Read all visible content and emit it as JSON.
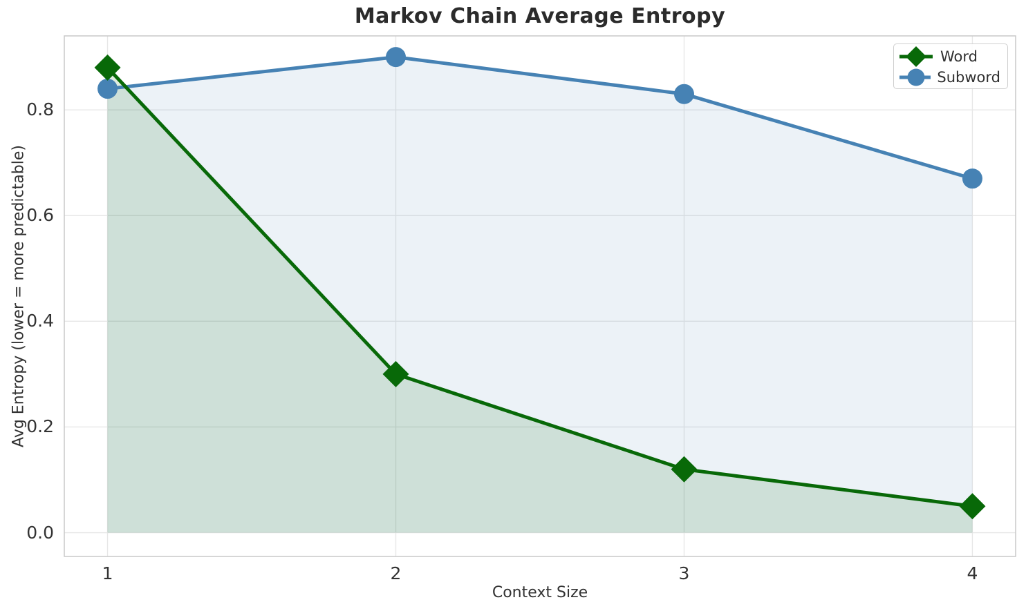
{
  "chart_data": {
    "type": "line",
    "title": "Markov Chain Average Entropy",
    "xlabel": "Context Size",
    "ylabel": "Avg Entropy (lower = more predictable)",
    "x": [
      1,
      2,
      3,
      4
    ],
    "x_tick_labels": [
      "1",
      "2",
      "3",
      "4"
    ],
    "y_tick_values": [
      0.0,
      0.2,
      0.4,
      0.6,
      0.8
    ],
    "y_tick_labels": [
      "0.0",
      "0.2",
      "0.4",
      "0.6",
      "0.8"
    ],
    "xlim": [
      0.85,
      4.15
    ],
    "ylim": [
      -0.045,
      0.94
    ],
    "grid": true,
    "grid_color": "#e7e7e7",
    "spine_color": "#c9c9c9",
    "legend_position": "upper-right",
    "fill_baseline": 0.0,
    "series": [
      {
        "name": "Word",
        "marker": "diamond",
        "color": "#086908",
        "fill_alpha": 0.13,
        "line_width": 5,
        "values": [
          0.88,
          0.3,
          0.12,
          0.05
        ]
      },
      {
        "name": "Subword",
        "marker": "circle",
        "color": "#4682b4",
        "fill_alpha": 0.1,
        "line_width": 5,
        "values": [
          0.84,
          0.9,
          0.83,
          0.67
        ]
      }
    ]
  },
  "colors": {
    "title_text": "#2b2b2b",
    "axis_text": "#333333",
    "word_green": "#086908",
    "subword_blue": "#4682b4"
  }
}
